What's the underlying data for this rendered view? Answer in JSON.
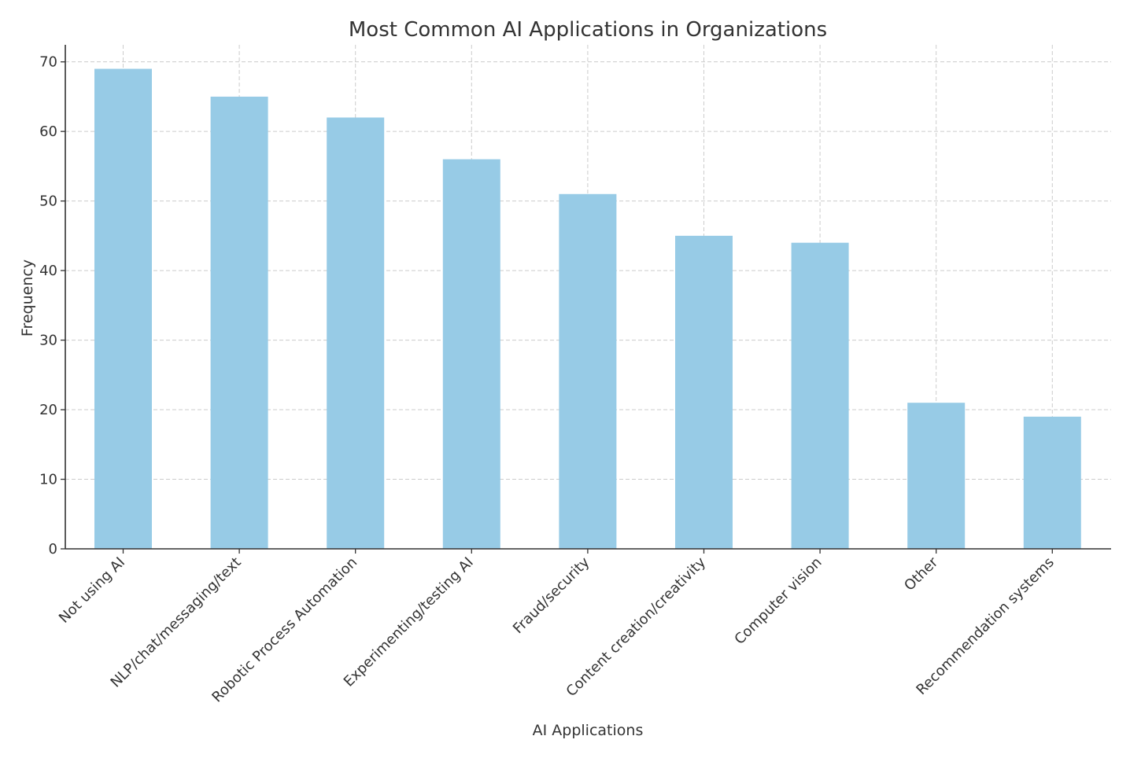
{
  "chart_data": {
    "type": "bar",
    "title": "Most Common AI Applications in Organizations",
    "xlabel": "AI Applications",
    "ylabel": "Frequency",
    "categories": [
      "Not using AI",
      "NLP/chat/messaging/text",
      "Robotic Process Automation",
      "Experimenting/testing AI",
      "Fraud/security",
      "Content creation/creativity",
      "Computer vision",
      "Other",
      "Recommendation systems"
    ],
    "values": [
      69,
      65,
      62,
      56,
      51,
      45,
      44,
      21,
      19
    ],
    "ylim": [
      0,
      72.45
    ],
    "yticks": [
      0,
      10,
      20,
      30,
      40,
      50,
      60,
      70
    ],
    "grid": true,
    "bar_color": "#97cbe6"
  }
}
